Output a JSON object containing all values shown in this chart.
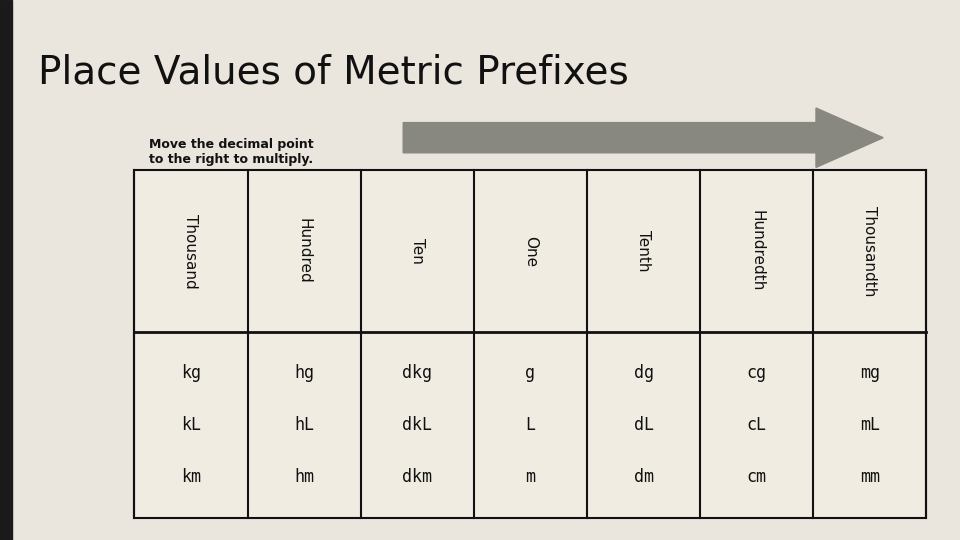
{
  "title": "Place Values of Metric Prefixes",
  "subtitle": "Move the decimal point\nto the right to multiply.",
  "background_color": "#eae6de",
  "left_bar_color": "#1a1a1a",
  "title_fontsize": 28,
  "subtitle_fontsize": 9,
  "headers": [
    "Thousand",
    "Hundred",
    "Ten",
    "One",
    "Tenth",
    "Hundredth",
    "Thousandth"
  ],
  "rows": [
    [
      "km",
      "hm",
      "dkm",
      "m",
      "dm",
      "cm",
      "mm"
    ],
    [
      "kL",
      "hL",
      "dkL",
      "L",
      "dL",
      "cL",
      "mL"
    ],
    [
      "kg",
      "hg",
      "dkg",
      "g",
      "dg",
      "cg",
      "mg"
    ]
  ],
  "table_bg": "#f0ece2",
  "cell_text_color": "#111111",
  "arrow_color": "#888880",
  "header_rotate": 270
}
